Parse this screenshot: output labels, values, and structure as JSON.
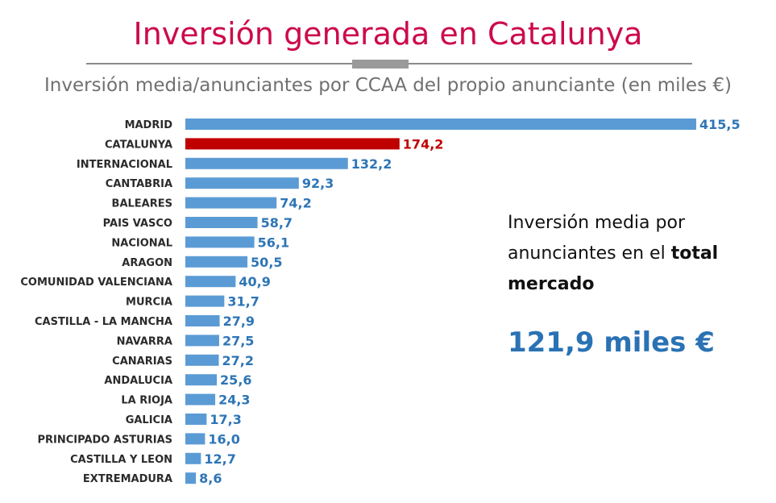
{
  "header": {
    "title": "Inversión generada en Catalunya",
    "subtitle": "Inversión media/anunciantes por CCAA del propio anunciante (en miles €)"
  },
  "info": {
    "line1": "Inversión media por",
    "line2_prefix": "anunciantes en el ",
    "line2_bold": "total",
    "line3_bold": "mercado",
    "big_value": "121,9 miles €"
  },
  "colors": {
    "bar": "#5b9bd5",
    "highlight_bar": "#c00000",
    "value_label": "#2e75b6",
    "highlight_label": "#c00000",
    "title": "#cc0a4a"
  },
  "chart_data": {
    "type": "bar",
    "orientation": "horizontal",
    "title": "Inversión generada en Catalunya",
    "subtitle": "Inversión media/anunciantes por CCAA del propio anunciante (en miles €)",
    "xlabel": "",
    "ylabel": "",
    "xlim": [
      0,
      415.5
    ],
    "grid": false,
    "legend": "none",
    "highlight": "CATALUNYA",
    "categories": [
      "MADRID",
      "CATALUNYA",
      "INTERNACIONAL",
      "CANTABRIA",
      "BALEARES",
      "PAIS VASCO",
      "NACIONAL",
      "ARAGON",
      "COMUNIDAD VALENCIANA",
      "MURCIA",
      "CASTILLA - LA MANCHA",
      "NAVARRA",
      "CANARIAS",
      "ANDALUCIA",
      "LA RIOJA",
      "GALICIA",
      "PRINCIPADO ASTURIAS",
      "CASTILLA Y LEON",
      "EXTREMADURA"
    ],
    "values": [
      415.5,
      174.2,
      132.2,
      92.3,
      74.2,
      58.7,
      56.1,
      50.5,
      40.9,
      31.7,
      27.9,
      27.5,
      27.2,
      25.6,
      24.3,
      17.3,
      16.0,
      12.7,
      8.6
    ],
    "value_labels": [
      "415,5",
      "174,2",
      "132,2",
      "92,3",
      "74,2",
      "58,7",
      "56,1",
      "50,5",
      "40,9",
      "31,7",
      "27,9",
      "27,5",
      "27,2",
      "25,6",
      "24,3",
      "17,3",
      "16,0",
      "12,7",
      "8,6"
    ]
  }
}
